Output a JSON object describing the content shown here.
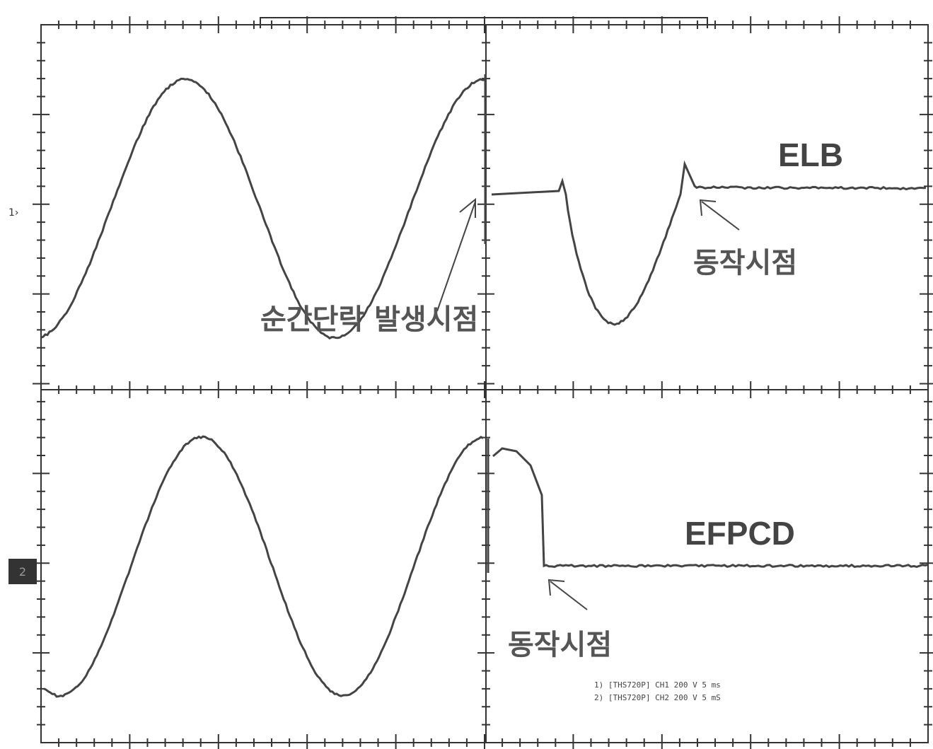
{
  "markers": {
    "ch1": "1›",
    "ch2": "2"
  },
  "traces": [
    {
      "label": "ELB",
      "annotation": "동작시점"
    },
    {
      "label": "EFPCD",
      "annotation": "동작시점"
    }
  ],
  "fault_annotation": "순간단락 발생시점",
  "settings": [
    "1) [THS720P] CH1 200 V 5 ms",
    "2) [THS720P] CH2 200 V 5 mS"
  ]
}
